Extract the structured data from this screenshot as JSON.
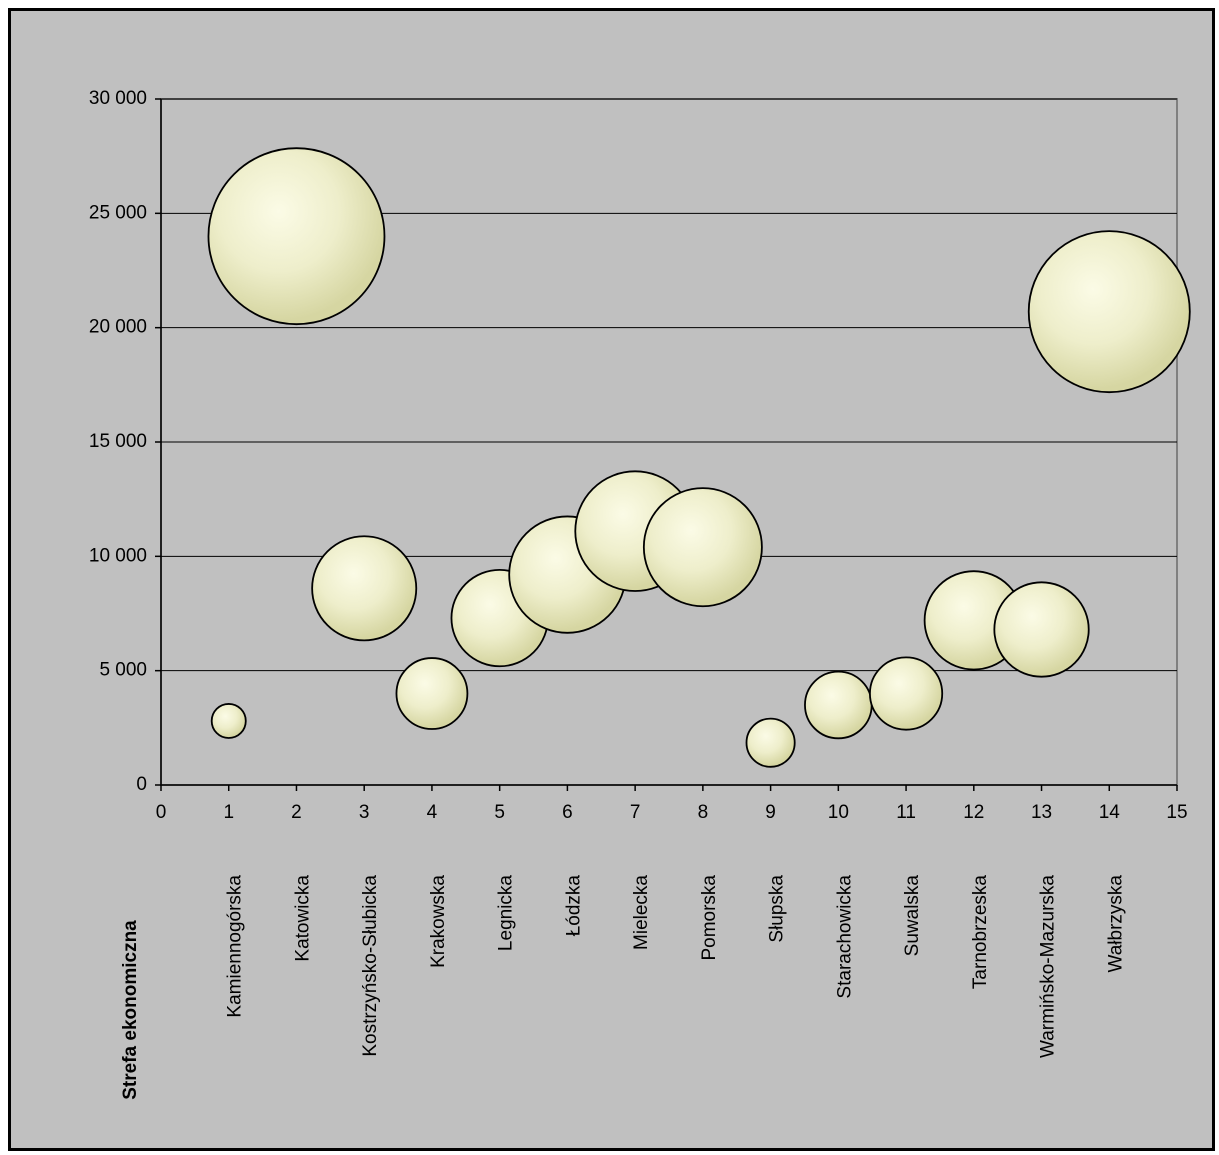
{
  "colors": {
    "plot_background": "#c0c0c0",
    "bubble_fill_light": "#fbfbe6",
    "bubble_fill_dark": "#d6d6a2",
    "bubble_stroke": "#000000",
    "gridline": "#000000"
  },
  "chart_data": {
    "type": "bubble",
    "title": "",
    "xlabel": "",
    "ylabel": "",
    "xlim": [
      0,
      15
    ],
    "ylim": [
      0,
      30000
    ],
    "x_ticks": [
      0,
      1,
      2,
      3,
      4,
      5,
      6,
      7,
      8,
      9,
      10,
      11,
      12,
      13,
      14,
      15
    ],
    "x_tick_labels": [
      "0",
      "1",
      "2",
      "3",
      "4",
      "5",
      "6",
      "7",
      "8",
      "9",
      "10",
      "11",
      "12",
      "13",
      "14",
      "15"
    ],
    "y_ticks": [
      0,
      5000,
      10000,
      15000,
      20000,
      25000,
      30000
    ],
    "y_tick_labels": [
      "0",
      "5 000",
      "10 000",
      "15 000",
      "20 000",
      "25 000",
      "30 000"
    ],
    "grid": {
      "horizontal": true,
      "vertical": false
    },
    "category_axis_title": "Strefa ekonomiczna",
    "series": [
      {
        "points": [
          {
            "x": 1,
            "y": 2800,
            "size": 3.0,
            "label": "Kamiennogórska"
          },
          {
            "x": 2,
            "y": 24000,
            "size": 80.0,
            "label": "Katowicka"
          },
          {
            "x": 3,
            "y": 8600,
            "size": 28.0,
            "label": "Kostrzyńsko-Słubicka"
          },
          {
            "x": 4,
            "y": 4000,
            "size": 13.0,
            "label": "Krakowska"
          },
          {
            "x": 5,
            "y": 7300,
            "size": 24.0,
            "label": "Legnicka"
          },
          {
            "x": 6,
            "y": 9200,
            "size": 35.0,
            "label": "Łódzka"
          },
          {
            "x": 7,
            "y": 11100,
            "size": 37.0,
            "label": "Mielecka"
          },
          {
            "x": 8,
            "y": 10400,
            "size": 36.0,
            "label": "Pomorska"
          },
          {
            "x": 9,
            "y": 1850,
            "size": 6.0,
            "label": "Słupska"
          },
          {
            "x": 10,
            "y": 3500,
            "size": 11.5,
            "label": "Starachowicka"
          },
          {
            "x": 11,
            "y": 4000,
            "size": 13.5,
            "label": "Suwalska"
          },
          {
            "x": 12,
            "y": 7200,
            "size": 25.0,
            "label": "Tarnobrzeska"
          },
          {
            "x": 13,
            "y": 6800,
            "size": 23.0,
            "label": "Warmińsko-Mazurska"
          },
          {
            "x": 14,
            "y": 20700,
            "size": 67.0,
            "label": "Wałbrzyska"
          }
        ]
      }
    ]
  }
}
